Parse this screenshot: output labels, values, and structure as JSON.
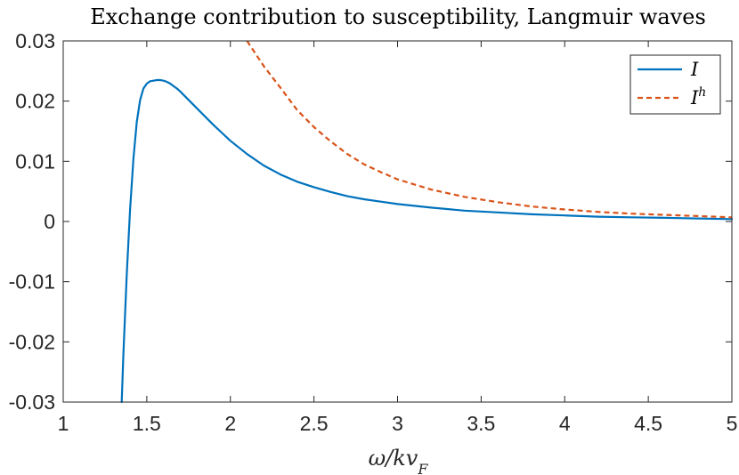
{
  "chart_data": {
    "type": "line",
    "title": "Exchange contribution to susceptibility, Langmuir waves",
    "xlabel_base": "ω/kv",
    "xlabel_sub": "F",
    "ylabel": "",
    "xlim": [
      1,
      5
    ],
    "ylim": [
      -0.03,
      0.03
    ],
    "xticks": [
      1,
      1.5,
      2,
      2.5,
      3,
      3.5,
      4,
      4.5,
      5
    ],
    "xtick_labels": [
      "1",
      "1.5",
      "2",
      "2.5",
      "3",
      "3.5",
      "4",
      "4.5",
      "5"
    ],
    "yticks": [
      -0.03,
      -0.02,
      -0.01,
      0,
      0.01,
      0.02,
      0.03
    ],
    "ytick_labels": [
      "-0.03",
      "-0.02",
      "-0.01",
      "0",
      "0.01",
      "0.02",
      "0.03"
    ],
    "legend_position": "top-right",
    "series": [
      {
        "name": "I",
        "name_base": "I",
        "name_sup": "",
        "color": "#0072BD",
        "style": "solid",
        "x": [
          1.35,
          1.36,
          1.38,
          1.4,
          1.42,
          1.44,
          1.46,
          1.48,
          1.5,
          1.52,
          1.54,
          1.56,
          1.58,
          1.6,
          1.62,
          1.64,
          1.66,
          1.68,
          1.7,
          1.75,
          1.8,
          1.85,
          1.9,
          1.95,
          2.0,
          2.1,
          2.2,
          2.3,
          2.4,
          2.5,
          2.6,
          2.7,
          2.8,
          2.9,
          3.0,
          3.2,
          3.4,
          3.6,
          3.8,
          4.0,
          4.2,
          4.4,
          4.6,
          4.8,
          5.0
        ],
        "y": [
          -0.03,
          -0.022,
          -0.009,
          0.002,
          0.0105,
          0.0165,
          0.0202,
          0.0221,
          0.0229,
          0.0233,
          0.0234,
          0.0235,
          0.0235,
          0.0234,
          0.0232,
          0.0229,
          0.0225,
          0.0221,
          0.0216,
          0.0202,
          0.0188,
          0.0174,
          0.016,
          0.0147,
          0.0134,
          0.0112,
          0.0093,
          0.0078,
          0.0066,
          0.0057,
          0.0049,
          0.0042,
          0.0037,
          0.0033,
          0.0029,
          0.0023,
          0.0018,
          0.0015,
          0.0012,
          0.001,
          0.0008,
          0.0007,
          0.0006,
          0.0005,
          0.0004
        ]
      },
      {
        "name": "I^h",
        "name_base": "I",
        "name_sup": "h",
        "color": "#D95319",
        "style": "dashed",
        "x": [
          2.1,
          2.2,
          2.3,
          2.4,
          2.5,
          2.6,
          2.7,
          2.8,
          2.9,
          3.0,
          3.2,
          3.4,
          3.6,
          3.8,
          4.0,
          4.2,
          4.4,
          4.6,
          4.8,
          5.0
        ],
        "y": [
          0.03,
          0.0258,
          0.0222,
          0.0185,
          0.0157,
          0.0133,
          0.0112,
          0.0095,
          0.0082,
          0.007,
          0.0053,
          0.0041,
          0.0032,
          0.0025,
          0.002,
          0.0016,
          0.0013,
          0.0011,
          0.0009,
          0.0007
        ]
      }
    ]
  }
}
